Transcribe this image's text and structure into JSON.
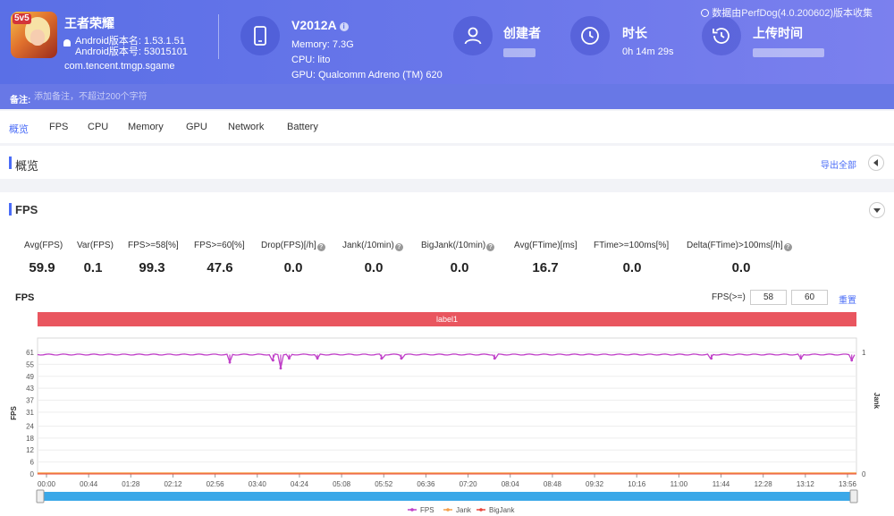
{
  "header": {
    "app_name": "王者荣耀",
    "android_version_name": "Android版本名: 1.53.1.51",
    "android_version_code": "Android版本号: 53015101",
    "package": "com.tencent.tmgp.sgame",
    "device_name": "V2012A",
    "memory": "Memory: 7.3G",
    "cpu": "CPU: lito",
    "gpu": "GPU: Qualcomm Adreno (TM) 620",
    "creator_title": "创建者",
    "duration_title": "时长",
    "duration_value": "0h 14m 29s",
    "upload_title": "上传时间",
    "data_source": "数据由PerfDog(4.0.200602)版本收集",
    "app_icon_badge": "5v5"
  },
  "note": {
    "label": "备注:",
    "placeholder": "添加备注，不超过200个字符"
  },
  "tabs": [
    {
      "label": "概览",
      "active": true
    },
    {
      "label": "FPS"
    },
    {
      "label": "CPU"
    },
    {
      "label": "Memory"
    },
    {
      "label": "GPU"
    },
    {
      "label": "Network"
    },
    {
      "label": "Battery"
    }
  ],
  "overview": {
    "title": "概览",
    "export_label": "导出全部"
  },
  "fps_section": {
    "title": "FPS",
    "metrics": [
      {
        "label": "Avg(FPS)",
        "value": "59.9"
      },
      {
        "label": "Var(FPS)",
        "value": "0.1"
      },
      {
        "label": "FPS>=58[%]",
        "value": "99.3"
      },
      {
        "label": "FPS>=60[%]",
        "value": "47.6"
      },
      {
        "label": "Drop(FPS)[/h]",
        "value": "0.0",
        "help": true
      },
      {
        "label": "Jank(/10min)",
        "value": "0.0",
        "help": true
      },
      {
        "label": "BigJank(/10min)",
        "value": "0.0",
        "help": true
      },
      {
        "label": "Avg(FTime)[ms]",
        "value": "16.7"
      },
      {
        "label": "FTime>=100ms[%]",
        "value": "0.0"
      },
      {
        "label": "Delta(FTime)>100ms[/h]",
        "value": "0.0",
        "help": true
      }
    ],
    "chart_label": "FPS",
    "threshold_label": "FPS(>=)",
    "threshold_low": "58",
    "threshold_high": "60",
    "reset_label": "重置",
    "segment_label": "label1"
  },
  "colors": {
    "accent": "#4a6cf7",
    "header": "#5a6fe6",
    "segment": "#e9565f",
    "fps_line": "#c040c8",
    "jank_line": "#f5a04a",
    "bigjank_line": "#e8453c",
    "slider": "#3aa8e8"
  },
  "chart_data": {
    "type": "line",
    "title": "",
    "ylabel": "FPS",
    "y2label": "Jank",
    "y_ticks": [
      0,
      6,
      12,
      18,
      24,
      31,
      37,
      43,
      49,
      55,
      61
    ],
    "ylim": [
      0,
      61
    ],
    "y2_ticks": [
      0,
      1
    ],
    "y2lim": [
      0,
      1
    ],
    "x_ticks": [
      "00:00",
      "00:44",
      "01:28",
      "02:12",
      "02:56",
      "03:40",
      "04:24",
      "05:08",
      "05:52",
      "06:36",
      "07:20",
      "08:04",
      "08:48",
      "09:32",
      "10:16",
      "11:00",
      "11:44",
      "12:28",
      "13:12",
      "13:56"
    ],
    "x_range_seconds": [
      0,
      869
    ],
    "series": [
      {
        "name": "FPS",
        "baseline": 59.9,
        "dips": [
          [
            204,
            56
          ],
          [
            250,
            57
          ],
          [
            258,
            53
          ],
          [
            267,
            58
          ],
          [
            297,
            58
          ],
          [
            365,
            58
          ],
          [
            386,
            58
          ],
          [
            485,
            58
          ],
          [
            715,
            58
          ],
          [
            810,
            58
          ],
          [
            864,
            57
          ]
        ]
      },
      {
        "name": "Jank",
        "baseline": 0
      },
      {
        "name": "BigJank",
        "baseline": 0
      }
    ],
    "grid": "horizontal",
    "legend": "bottom-center"
  }
}
